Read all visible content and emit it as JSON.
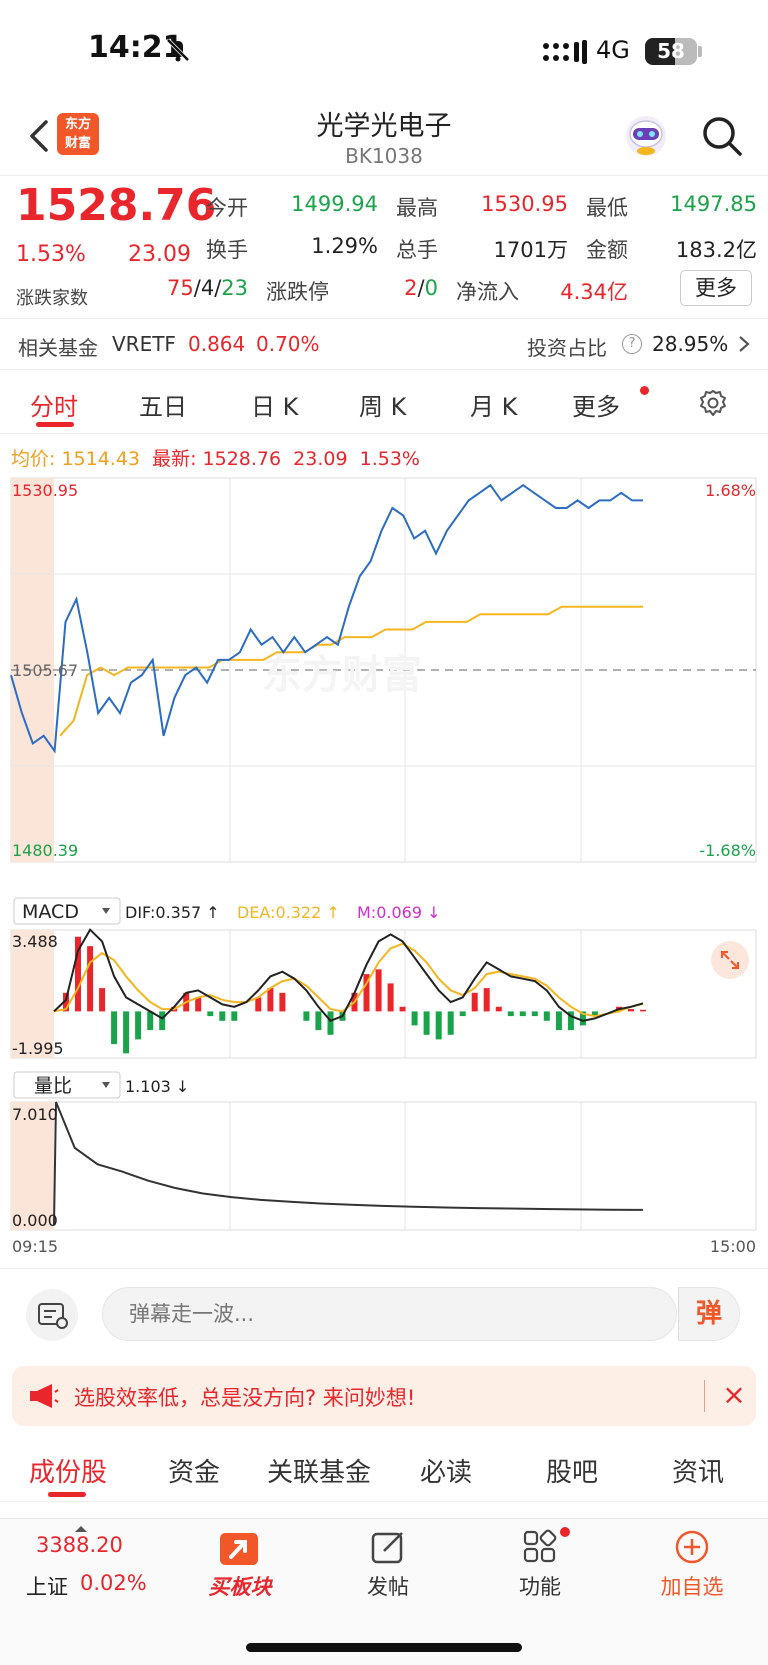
{
  "status_bar": {
    "time": "14:21",
    "network": "4G",
    "battery": "58",
    "battery_level": 0.58
  },
  "header": {
    "title": "光学光电子",
    "code": "BK1038",
    "logo_line1": "东方",
    "logo_line2": "财富"
  },
  "quote": {
    "price": "1528.76",
    "pct": "1.53%",
    "change": "23.09",
    "open_label": "今开",
    "open": "1499.94",
    "high_label": "最高",
    "high": "1530.95",
    "low_label": "最低",
    "low": "1497.85",
    "turnover_label": "换手",
    "turnover": "1.29%",
    "volume_label": "总手",
    "volume": "1701万",
    "amount_label": "金额",
    "amount": "183.2亿",
    "breadth_label": "涨跌家数",
    "up": "75",
    "flat": "4",
    "down": "23",
    "limit_label": "涨跌停",
    "limit_up": "2",
    "limit_down": "0",
    "inflow_label": "净流入",
    "inflow": "4.34亿",
    "more_label": "更多"
  },
  "fund": {
    "label": "相关基金",
    "name": "VRETF",
    "price": "0.864",
    "pct": "0.70%",
    "ratio_label": "投资占比",
    "ratio": "28.95%"
  },
  "chart_tabs": [
    "分时",
    "五日",
    "日 K",
    "周 K",
    "月 K",
    "更多"
  ],
  "intraday_info": {
    "avg_label": "均价:",
    "avg": "1514.43",
    "latest_label": "最新:",
    "latest": "1528.76",
    "change": "23.09",
    "pct": "1.53%"
  },
  "chart_data": [
    {
      "type": "line",
      "x_range": [
        "09:15",
        "15:00"
      ],
      "ylim": [
        1480.39,
        1530.95
      ],
      "y_ticks": [
        "1530.95",
        "1505.67",
        "1480.39"
      ],
      "y_right_ticks": [
        "1.68%",
        "-1.68%"
      ],
      "series": [
        {
          "name": "最新",
          "color": "#2b6cc4",
          "values": [
            1505,
            1500,
            1496,
            1497,
            1495,
            1512,
            1515,
            1508,
            1500,
            1502,
            1500,
            1504,
            1505,
            1507,
            1497,
            1502,
            1505,
            1506,
            1504,
            1507,
            1507,
            1508,
            1511,
            1509,
            1510,
            1508,
            1510,
            1508,
            1509,
            1510,
            1509,
            1514,
            1518,
            1520,
            1524,
            1527,
            1526,
            1523,
            1524,
            1521,
            1524,
            1526,
            1528,
            1529,
            1530,
            1528,
            1529,
            1530,
            1529,
            1528,
            1527,
            1527,
            1528,
            1527,
            1528,
            1528,
            1529,
            1528,
            1528
          ]
        },
        {
          "name": "均价",
          "color": "#f5b51f",
          "values": [
            1497,
            1499,
            1505,
            1506,
            1505,
            1506,
            1506,
            1506,
            1506,
            1506,
            1506,
            1506,
            1507,
            1507,
            1507,
            1507,
            1508,
            1508,
            1508,
            1509,
            1509,
            1510,
            1510,
            1510,
            1511,
            1511,
            1511,
            1512,
            1512,
            1512,
            1512,
            1513,
            1513,
            1513,
            1513,
            1513,
            1513,
            1514,
            1514,
            1514,
            1514,
            1514,
            1514,
            1514
          ]
        }
      ]
    },
    {
      "type": "bar",
      "name": "MACD",
      "ylim": [
        -1.995,
        3.488
      ],
      "y_ticks": [
        "3.488",
        "-1.995"
      ],
      "dif_label": "DIF:0.357 ↑",
      "dea_label": "DEA:0.322 ↑",
      "m_label": "M:0.069 ↓",
      "dif": [
        0.0,
        0.5,
        2.6,
        3.5,
        3.0,
        1.5,
        0.6,
        0.3,
        0.0,
        -0.3,
        0.2,
        0.8,
        0.9,
        0.6,
        0.3,
        0.2,
        0.4,
        0.9,
        1.5,
        1.7,
        1.4,
        0.9,
        0.2,
        -0.4,
        -0.2,
        0.8,
        2.0,
        3.0,
        3.3,
        3.0,
        2.3,
        1.6,
        0.9,
        0.4,
        0.6,
        1.4,
        2.1,
        1.8,
        1.5,
        1.4,
        1.3,
        0.9,
        0.2,
        -0.2,
        -0.4,
        -0.3,
        -0.1,
        0.1,
        0.2,
        0.35
      ],
      "dea": [
        0.0,
        0.1,
        1.0,
        2.1,
        2.5,
        2.2,
        1.5,
        0.9,
        0.4,
        0.1,
        0.1,
        0.4,
        0.6,
        0.7,
        0.5,
        0.4,
        0.4,
        0.6,
        1.0,
        1.3,
        1.4,
        1.1,
        0.6,
        0.1,
        0.0,
        0.4,
        1.2,
        2.1,
        2.7,
        2.9,
        2.6,
        2.1,
        1.4,
        0.9,
        0.7,
        1.0,
        1.6,
        1.7,
        1.6,
        1.5,
        1.4,
        1.1,
        0.6,
        0.2,
        -0.1,
        -0.2,
        -0.1,
        0.0,
        0.2,
        0.32
      ],
      "m": [
        0.0,
        0.8,
        3.2,
        2.8,
        1.0,
        -1.4,
        -1.8,
        -1.2,
        -0.8,
        -0.8,
        0.2,
        0.8,
        0.6,
        -0.2,
        -0.4,
        -0.4,
        0.0,
        0.6,
        1.0,
        0.8,
        0.0,
        -0.4,
        -0.8,
        -1.0,
        -0.4,
        0.8,
        1.6,
        1.8,
        1.2,
        0.2,
        -0.6,
        -1.0,
        -1.2,
        -1.0,
        -0.2,
        0.8,
        1.0,
        0.2,
        -0.2,
        -0.2,
        -0.2,
        -0.4,
        -0.8,
        -0.8,
        -0.6,
        -0.2,
        0.0,
        0.2,
        0.1,
        0.07
      ]
    },
    {
      "type": "line",
      "name": "量比",
      "value_label": "1.103 ↓",
      "ylim": [
        0.0,
        7.01
      ],
      "y_ticks": [
        "7.010",
        "0.000"
      ],
      "x_ticks": [
        "09:15",
        "15:00"
      ],
      "values": [
        7.01,
        4.5,
        3.6,
        3.2,
        2.7,
        2.3,
        2.0,
        1.8,
        1.65,
        1.55,
        1.45,
        1.38,
        1.32,
        1.27,
        1.23,
        1.2,
        1.18,
        1.15,
        1.13,
        1.11,
        1.103
      ]
    }
  ],
  "watermark": "东方财富",
  "danmu": {
    "placeholder": "弹幕走一波...",
    "send_label": "弹"
  },
  "promo": {
    "text": "选股效率低，总是没方向? 来问妙想!"
  },
  "section_tabs": [
    "成份股",
    "资金",
    "关联基金",
    "必读",
    "股吧",
    "资讯"
  ],
  "bottom_nav": {
    "index_value": "3388.20",
    "index_name": "上证",
    "index_pct": "0.02%",
    "buy_label": "买板块",
    "post_label": "发帖",
    "func_label": "功能",
    "add_label": "加自选"
  },
  "colors": {
    "up": "#e8262c",
    "down": "#1aa34a",
    "avg": "#f5b51f",
    "price": "#2b6cc4",
    "accent": "#f2572a"
  }
}
